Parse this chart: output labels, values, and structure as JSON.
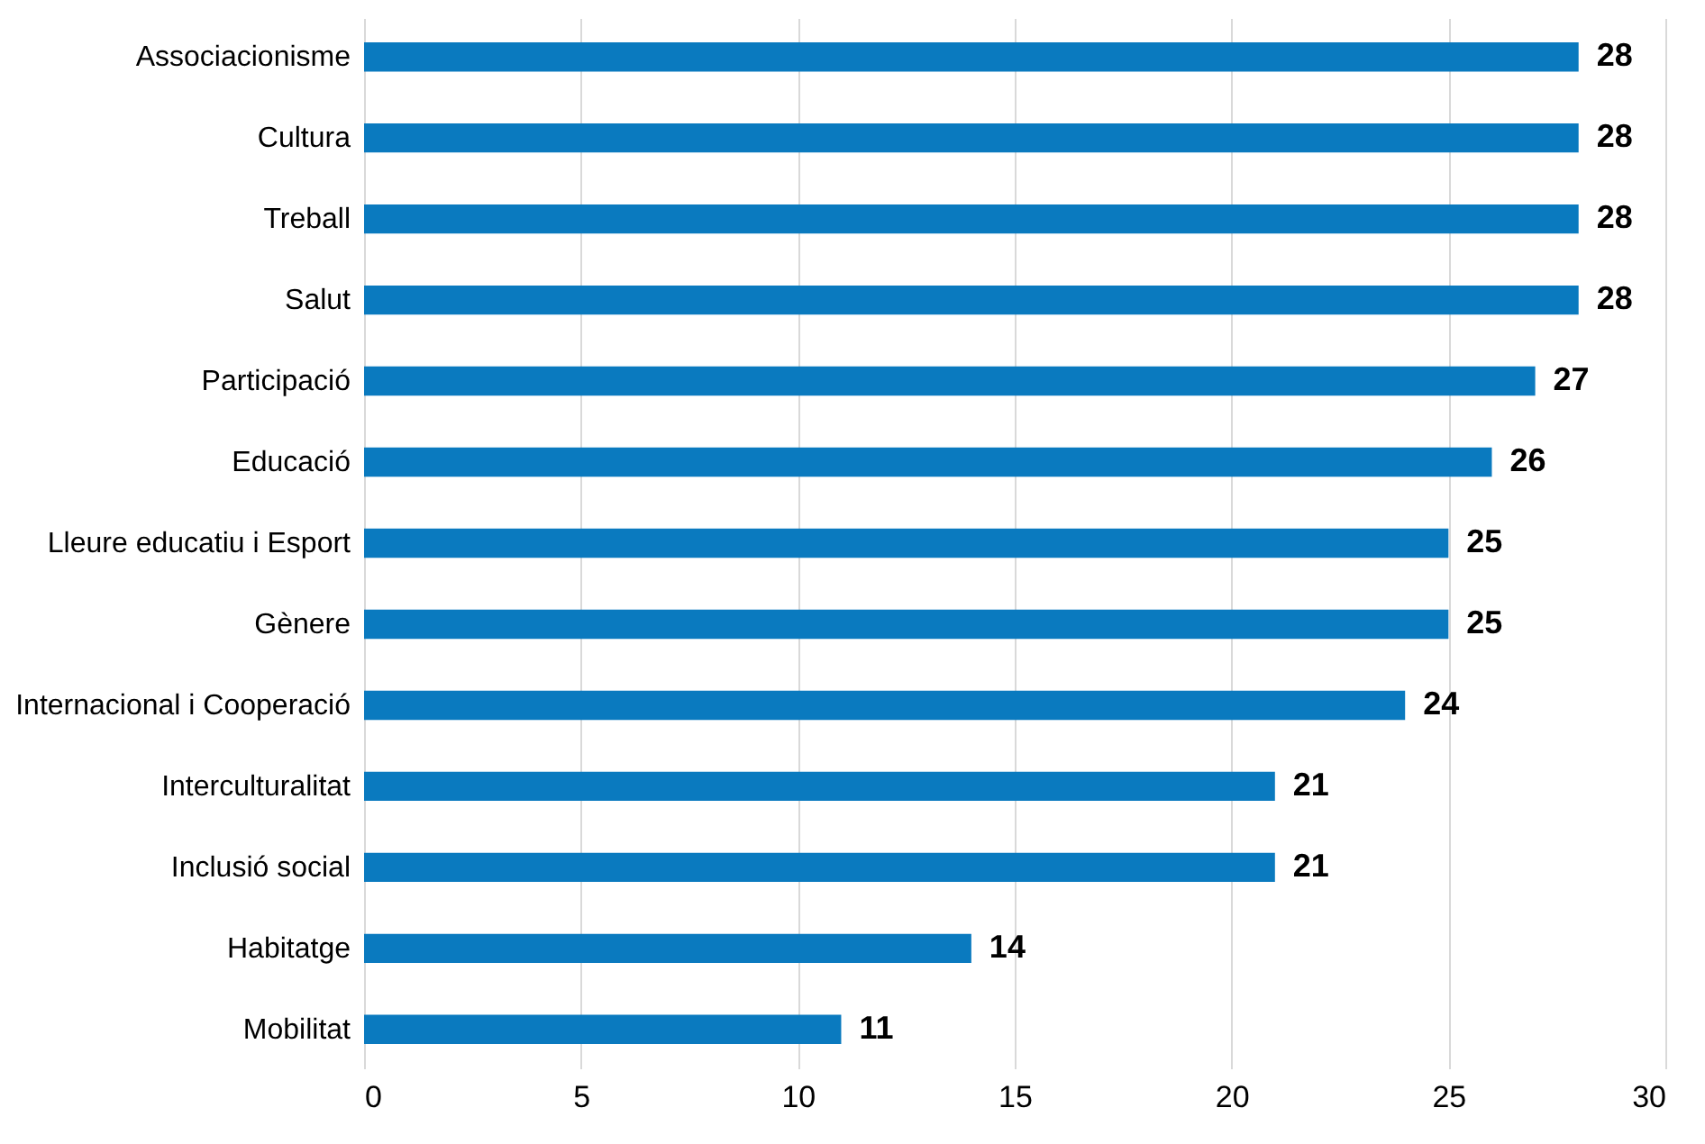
{
  "chart_data": {
    "type": "bar",
    "orientation": "horizontal",
    "categories": [
      "Associacionisme",
      "Cultura",
      "Treball",
      "Salut",
      "Participació",
      "Educació",
      "Lleure educatiu i Esport",
      "Gènere",
      "Internacional i Cooperació",
      "Interculturalitat",
      "Inclusió social",
      "Habitatge",
      "Mobilitat"
    ],
    "values": [
      28,
      28,
      28,
      28,
      27,
      26,
      25,
      25,
      24,
      21,
      21,
      14,
      11
    ],
    "color": "#0a7abf",
    "xlim": [
      0,
      30
    ],
    "xticks": [
      0,
      5,
      10,
      15,
      20,
      25,
      30
    ],
    "grid": "x",
    "data_labels": true
  }
}
